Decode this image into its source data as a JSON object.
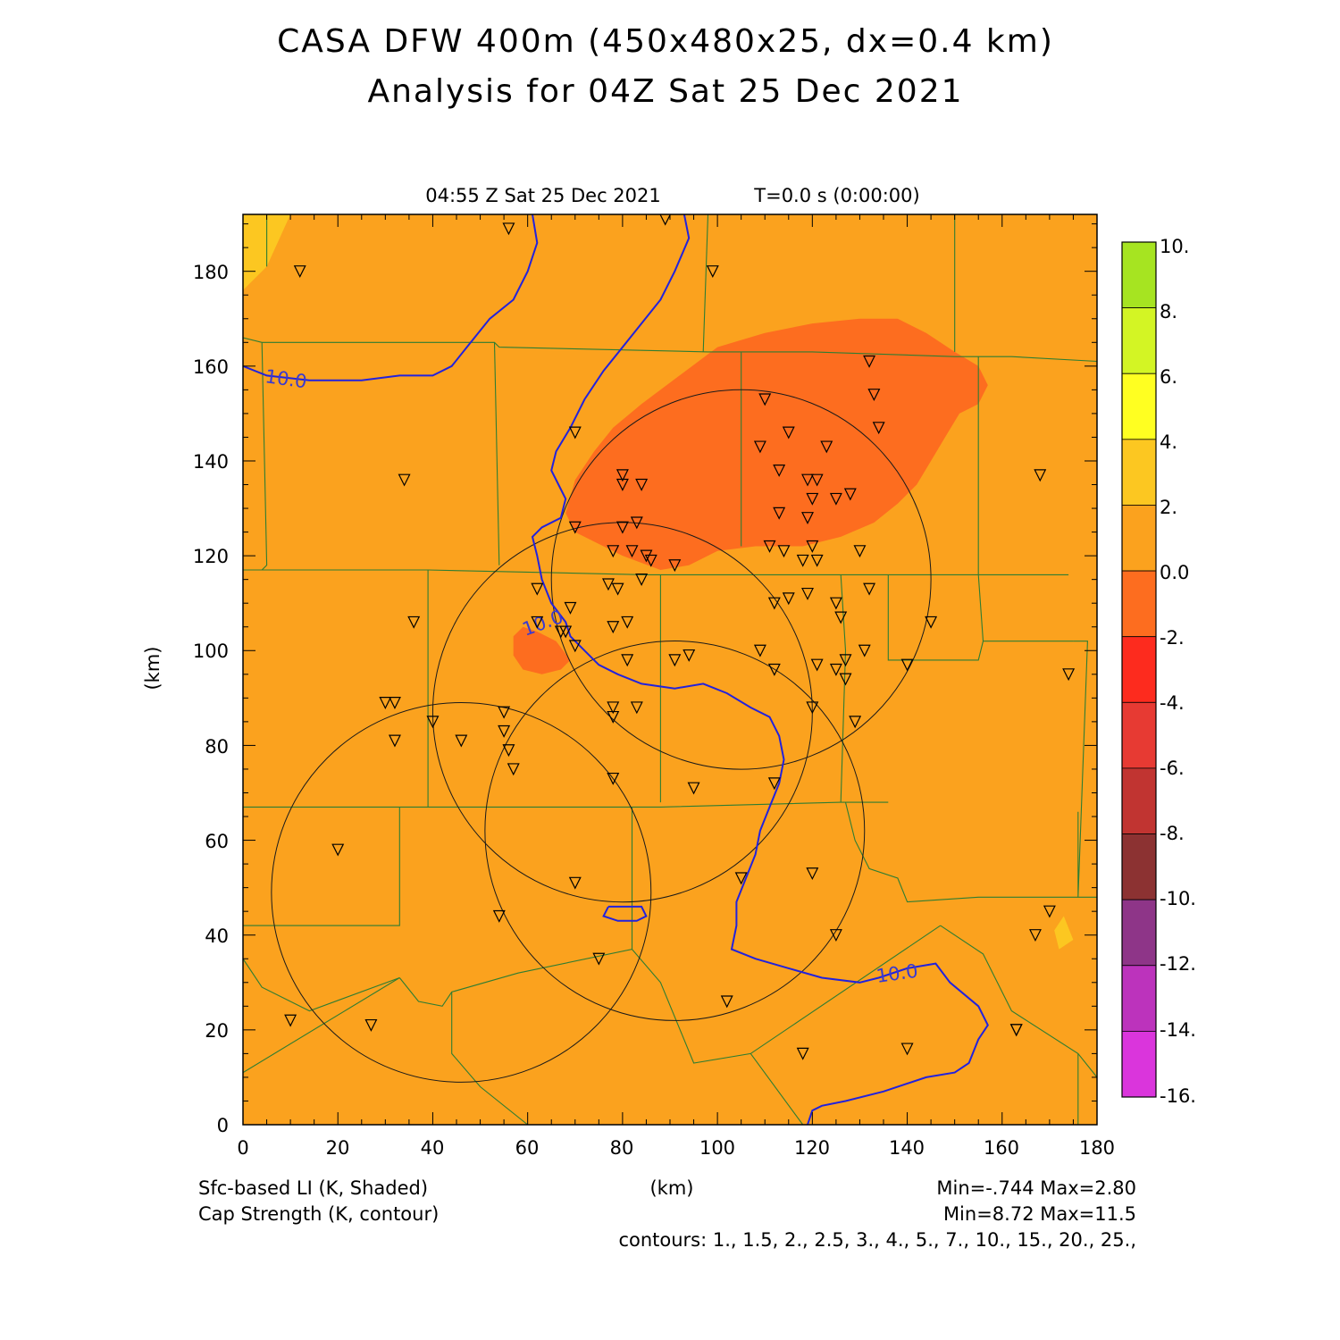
{
  "header": {
    "title_line1": "CASA DFW 400m (450x480x25, dx=0.4 km)",
    "title_line2": "Analysis for 04Z Sat 25 Dec 2021"
  },
  "plot": {
    "valid_time": "04:55 Z Sat 25 Dec 2021",
    "forecast_time": "T=0.0 s (0:00:00)",
    "x_axis_label": "(km)",
    "y_axis_label": "(km)",
    "x_ticks": [
      "0",
      "20",
      "40",
      "60",
      "80",
      "100",
      "120",
      "140",
      "160",
      "180"
    ],
    "y_ticks": [
      "0",
      "20",
      "40",
      "60",
      "80",
      "100",
      "120",
      "140",
      "160",
      "180"
    ],
    "x_range_km": [
      0,
      180
    ],
    "y_range_km": [
      0,
      192
    ],
    "background_color": "#fba21e",
    "cap_contour_labels": [
      "10.0",
      "10.0",
      "10.0"
    ]
  },
  "colorbar": {
    "labels": [
      "10.",
      "8.",
      "6.",
      "4.",
      "2.",
      "0.0",
      "-2.",
      "-4.",
      "-6.",
      "-8.",
      "-10.",
      "-12.",
      "-14.",
      "-16."
    ],
    "colors_top_to_bottom": [
      "#a6e421",
      "#d3f524",
      "#ffff21",
      "#fcc721",
      "#fba21e",
      "#fd6d1f",
      "#fd2b1e",
      "#e73a33",
      "#c13431",
      "#8c3232",
      "#8e3588",
      "#bc33bc",
      "#da35dc"
    ]
  },
  "footer": {
    "field1_label": "Sfc-based LI (K, Shaded)",
    "field1_minmax": "Min=-.744 Max=2.80",
    "field2_label": "Cap Strength (K, contour)",
    "field2_minmax": "Min=8.72 Max=11.5",
    "contours_text": "contours: 1., 1.5, 2., 2.5, 3., 4., 5., 7., 10., 15., 20., 25.,"
  },
  "map": {
    "li_regions_km": {
      "orange_0_to_neg2": [
        [
          [
            68,
            129
          ],
          [
            70,
            136
          ],
          [
            74,
            142
          ],
          [
            78,
            147
          ],
          [
            84,
            152
          ],
          [
            92,
            158
          ],
          [
            100,
            164
          ],
          [
            110,
            167
          ],
          [
            120,
            169
          ],
          [
            130,
            170
          ],
          [
            138,
            170
          ],
          [
            144,
            167
          ],
          [
            150,
            163
          ],
          [
            155,
            160
          ],
          [
            157,
            156
          ],
          [
            155,
            152
          ],
          [
            151,
            150
          ],
          [
            148,
            145
          ],
          [
            145,
            140
          ],
          [
            142,
            135
          ],
          [
            138,
            131
          ],
          [
            133,
            127
          ],
          [
            126,
            124
          ],
          [
            118,
            122
          ],
          [
            108,
            122
          ],
          [
            100,
            121
          ],
          [
            94,
            118
          ],
          [
            88,
            117
          ],
          [
            80,
            120
          ],
          [
            74,
            123
          ],
          [
            70,
            125
          ]
        ],
        [
          [
            57,
            103
          ],
          [
            59,
            105
          ],
          [
            62,
            104
          ],
          [
            66,
            102
          ],
          [
            69,
            98
          ],
          [
            67,
            96
          ],
          [
            63,
            95
          ],
          [
            59,
            96
          ],
          [
            57,
            99
          ]
        ]
      ],
      "yellow_2_to_4": [
        [
          [
            0,
            192
          ],
          [
            10,
            192
          ],
          [
            5,
            181
          ],
          [
            0,
            176
          ]
        ],
        [
          [
            172,
            37
          ],
          [
            175,
            39
          ],
          [
            173,
            44
          ],
          [
            171,
            41
          ]
        ]
      ]
    },
    "cap_contours_km": [
      [
        [
          0,
          160
        ],
        [
          5,
          158
        ],
        [
          14,
          157
        ],
        [
          25,
          157
        ],
        [
          33,
          158
        ],
        [
          40,
          158
        ],
        [
          44,
          160
        ],
        [
          48,
          165
        ],
        [
          52,
          170
        ],
        [
          57,
          174
        ],
        [
          60,
          180
        ],
        [
          62,
          186
        ],
        [
          61,
          192
        ]
      ],
      [
        [
          93,
          192
        ],
        [
          94,
          187
        ],
        [
          91,
          180
        ],
        [
          88,
          174
        ],
        [
          84,
          169
        ],
        [
          80,
          164
        ],
        [
          76,
          159
        ],
        [
          72,
          153
        ],
        [
          69,
          147
        ],
        [
          66,
          142
        ],
        [
          65,
          138
        ],
        [
          68,
          132
        ],
        [
          67,
          128
        ],
        [
          63,
          126
        ],
        [
          61,
          124
        ],
        [
          62,
          120
        ],
        [
          63,
          115
        ],
        [
          65,
          110
        ],
        [
          68,
          106
        ],
        [
          69,
          103
        ],
        [
          72,
          100
        ],
        [
          75,
          97
        ],
        [
          79,
          95
        ],
        [
          84,
          93
        ],
        [
          91,
          92
        ],
        [
          97,
          93
        ],
        [
          102,
          91
        ],
        [
          107,
          88
        ],
        [
          111,
          86
        ],
        [
          113,
          82
        ],
        [
          114,
          77
        ],
        [
          113,
          72
        ],
        [
          111,
          67
        ],
        [
          109,
          62
        ],
        [
          108,
          57
        ],
        [
          106,
          52
        ],
        [
          104,
          47
        ],
        [
          104,
          42
        ],
        [
          103,
          37
        ],
        [
          108,
          35
        ],
        [
          115,
          33
        ],
        [
          122,
          31
        ],
        [
          130,
          30
        ],
        [
          134,
          31
        ],
        [
          140,
          33
        ],
        [
          146,
          34
        ],
        [
          149,
          30
        ],
        [
          155,
          25
        ],
        [
          157,
          21
        ],
        [
          155,
          18
        ],
        [
          153,
          13
        ],
        [
          150,
          11
        ],
        [
          144,
          10
        ],
        [
          135,
          7
        ],
        [
          127,
          5
        ],
        [
          122,
          4
        ],
        [
          120,
          3
        ],
        [
          119,
          0
        ]
      ],
      [
        [
          77,
          46
        ],
        [
          80,
          46
        ],
        [
          84,
          46
        ],
        [
          85,
          44
        ],
        [
          83,
          43
        ],
        [
          79,
          43
        ],
        [
          76,
          44
        ],
        [
          77,
          46
        ]
      ]
    ],
    "radar_rings_km": [
      [
        105,
        115,
        40
      ],
      [
        80,
        87,
        40
      ],
      [
        46,
        49,
        40
      ],
      [
        91,
        62,
        40
      ]
    ],
    "boundaries_km": [
      [
        [
          5,
          192
        ],
        [
          5,
          181
        ]
      ],
      [
        [
          0,
          166
        ],
        [
          4,
          165
        ],
        [
          30,
          165
        ],
        [
          53,
          165
        ],
        [
          54,
          164
        ],
        [
          98,
          163
        ],
        [
          105,
          163
        ],
        [
          120,
          163
        ],
        [
          150,
          162
        ],
        [
          162,
          162
        ],
        [
          180,
          161
        ]
      ],
      [
        [
          4,
          165
        ],
        [
          5,
          118
        ],
        [
          4,
          117
        ]
      ],
      [
        [
          53,
          165
        ],
        [
          54,
          118
        ]
      ],
      [
        [
          98,
          192
        ],
        [
          97,
          163
        ]
      ],
      [
        [
          150,
          192
        ],
        [
          150,
          163
        ]
      ],
      [
        [
          105,
          163
        ],
        [
          105,
          122
        ]
      ],
      [
        [
          0,
          117
        ],
        [
          39,
          117
        ],
        [
          85,
          116
        ],
        [
          125,
          116
        ],
        [
          146,
          116
        ],
        [
          155,
          116
        ],
        [
          174,
          116
        ]
      ],
      [
        [
          155,
          162
        ],
        [
          155,
          116
        ],
        [
          156,
          102
        ]
      ],
      [
        [
          39,
          117
        ],
        [
          39,
          67
        ]
      ],
      [
        [
          126,
          116
        ],
        [
          127,
          100
        ],
        [
          126,
          68
        ]
      ],
      [
        [
          88,
          116
        ],
        [
          88,
          68
        ]
      ],
      [
        [
          0,
          67
        ],
        [
          33,
          67
        ],
        [
          88,
          67
        ],
        [
          126,
          68
        ],
        [
          136,
          68
        ]
      ],
      [
        [
          136,
          116
        ],
        [
          136,
          98
        ],
        [
          155,
          98
        ],
        [
          156,
          102
        ],
        [
          175,
          102
        ]
      ],
      [
        [
          175,
          102
        ],
        [
          178,
          102
        ],
        [
          176,
          48
        ],
        [
          176,
          66
        ]
      ],
      [
        [
          127,
          68
        ],
        [
          129,
          60
        ],
        [
          132,
          54
        ],
        [
          138,
          52
        ],
        [
          140,
          47
        ],
        [
          155,
          48
        ],
        [
          176,
          48
        ],
        [
          180,
          48
        ]
      ],
      [
        [
          33,
          67
        ],
        [
          33,
          42
        ],
        [
          22,
          42
        ],
        [
          0,
          42
        ]
      ],
      [
        [
          0,
          35
        ],
        [
          4,
          29
        ],
        [
          14,
          24
        ],
        [
          33,
          31
        ]
      ],
      [
        [
          0,
          11
        ],
        [
          33,
          31
        ]
      ],
      [
        [
          33,
          31
        ],
        [
          37,
          26
        ],
        [
          42,
          25
        ],
        [
          44,
          28
        ],
        [
          58,
          32
        ],
        [
          82,
          37
        ],
        [
          88,
          30
        ],
        [
          95,
          13
        ],
        [
          107,
          15
        ],
        [
          147,
          42
        ]
      ],
      [
        [
          82,
          67
        ],
        [
          82,
          37
        ]
      ],
      [
        [
          44,
          28
        ],
        [
          44,
          15
        ],
        [
          50,
          8
        ],
        [
          60,
          0
        ]
      ],
      [
        [
          107,
          15
        ],
        [
          118,
          0
        ]
      ],
      [
        [
          147,
          42
        ],
        [
          156,
          36
        ],
        [
          162,
          24
        ],
        [
          176,
          15
        ],
        [
          180,
          10
        ]
      ],
      [
        [
          176,
          15
        ],
        [
          176,
          0
        ]
      ]
    ],
    "stations_km": [
      [
        56,
        189
      ],
      [
        89,
        191
      ],
      [
        12,
        180
      ],
      [
        99,
        180
      ],
      [
        132,
        161
      ],
      [
        133,
        154
      ],
      [
        110,
        153
      ],
      [
        134,
        147
      ],
      [
        70,
        146
      ],
      [
        115,
        146
      ],
      [
        109,
        143
      ],
      [
        123,
        143
      ],
      [
        113,
        138
      ],
      [
        168,
        137
      ],
      [
        34,
        136
      ],
      [
        80,
        137
      ],
      [
        80,
        135
      ],
      [
        84,
        135
      ],
      [
        121,
        136
      ],
      [
        119,
        136
      ],
      [
        120,
        132
      ],
      [
        125,
        132
      ],
      [
        128,
        133
      ],
      [
        113,
        129
      ],
      [
        119,
        128
      ],
      [
        83,
        127
      ],
      [
        80,
        126
      ],
      [
        70,
        126
      ],
      [
        111,
        122
      ],
      [
        130,
        121
      ],
      [
        114,
        121
      ],
      [
        120,
        122
      ],
      [
        78,
        121
      ],
      [
        82,
        121
      ],
      [
        85,
        120
      ],
      [
        86,
        119
      ],
      [
        118,
        119
      ],
      [
        121,
        119
      ],
      [
        91,
        118
      ],
      [
        84,
        115
      ],
      [
        62,
        113
      ],
      [
        77,
        114
      ],
      [
        79,
        113
      ],
      [
        132,
        113
      ],
      [
        119,
        112
      ],
      [
        115,
        111
      ],
      [
        112,
        110
      ],
      [
        125,
        110
      ],
      [
        69,
        109
      ],
      [
        126,
        107
      ],
      [
        36,
        106
      ],
      [
        62,
        106
      ],
      [
        78,
        105
      ],
      [
        81,
        106
      ],
      [
        145,
        106
      ],
      [
        67,
        104
      ],
      [
        68,
        104
      ],
      [
        70,
        101
      ],
      [
        109,
        100
      ],
      [
        131,
        100
      ],
      [
        81,
        98
      ],
      [
        91,
        98
      ],
      [
        94,
        99
      ],
      [
        121,
        97
      ],
      [
        125,
        96
      ],
      [
        127,
        98
      ],
      [
        112,
        96
      ],
      [
        127,
        94
      ],
      [
        140,
        97
      ],
      [
        174,
        95
      ],
      [
        30,
        89
      ],
      [
        32,
        89
      ],
      [
        78,
        88
      ],
      [
        83,
        88
      ],
      [
        120,
        88
      ],
      [
        55,
        87
      ],
      [
        40,
        85
      ],
      [
        78,
        86
      ],
      [
        32,
        81
      ],
      [
        46,
        81
      ],
      [
        56,
        79
      ],
      [
        55,
        83
      ],
      [
        129,
        85
      ],
      [
        57,
        75
      ],
      [
        78,
        73
      ],
      [
        95,
        71
      ],
      [
        112,
        72
      ],
      [
        20,
        58
      ],
      [
        120,
        53
      ],
      [
        70,
        51
      ],
      [
        105,
        52
      ],
      [
        54,
        44
      ],
      [
        170,
        45
      ],
      [
        167,
        40
      ],
      [
        125,
        40
      ],
      [
        75,
        35
      ],
      [
        102,
        26
      ],
      [
        10,
        22
      ],
      [
        27,
        21
      ],
      [
        163,
        20
      ],
      [
        163,
        20
      ],
      [
        118,
        15
      ],
      [
        140,
        16
      ]
    ]
  }
}
